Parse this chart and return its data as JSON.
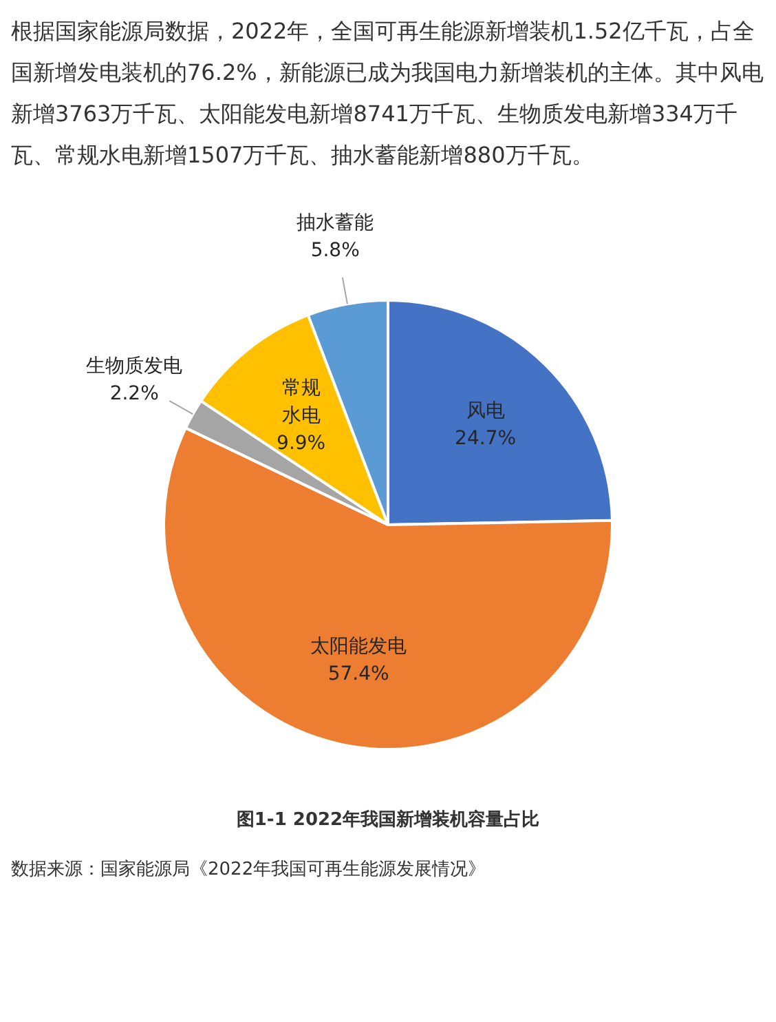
{
  "chart_data": {
    "type": "pie",
    "title": "图1-1 2022年我国新增装机容量占比",
    "annotations": [
      "根据国家能源局数据，2022年，全国可再生能源新增装机1.52亿千瓦，占全国新增发电装机的76.2%，新能源已成为我国电力新增装机的主体。其中风电新增3763万千瓦、太阳能发电新增8741万千瓦、生物质发电新增334万千瓦、常规水电新增1507万千瓦、抽水蓄能新增880万千瓦。",
      "数据来源：国家能源局《2022年我国可再生能源发展情况》"
    ],
    "categories": [
      "风电",
      "太阳能发电",
      "生物质发电",
      "常规水电",
      "抽水蓄能"
    ],
    "values": [
      24.7,
      57.4,
      2.2,
      9.9,
      5.8
    ],
    "value_labels": [
      "24.7%",
      "57.4%",
      "2.2%",
      "9.9%",
      "5.8%"
    ],
    "colors": [
      "#4472c4",
      "#ed7d31",
      "#a5a5a5",
      "#ffc000",
      "#5b9bd5"
    ],
    "legend": false
  }
}
